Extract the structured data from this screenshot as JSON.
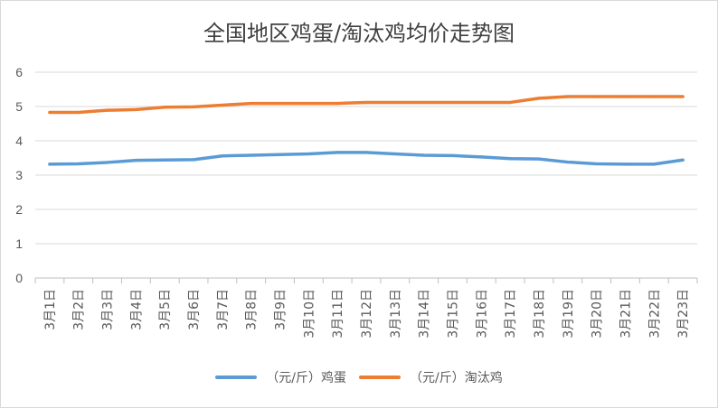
{
  "chart_data": {
    "type": "line",
    "title": "全国地区鸡蛋/淘汰鸡均价走势图",
    "categories": [
      "3月1日",
      "3月2日",
      "3月3日",
      "3月4日",
      "3月5日",
      "3月6日",
      "3月7日",
      "3月8日",
      "3月9日",
      "3月10日",
      "3月11日",
      "3月12日",
      "3月13日",
      "3月14日",
      "3月15日",
      "3月16日",
      "3月17日",
      "3月18日",
      "3月19日",
      "3月20日",
      "3月21日",
      "3月22日",
      "3月23日"
    ],
    "yticks": [
      "0",
      "1",
      "2",
      "3",
      "4",
      "5",
      "6"
    ],
    "ylim": [
      0,
      6
    ],
    "grid": true,
    "legend_position": "bottom",
    "series": [
      {
        "name": "（元/斤）鸡蛋",
        "color": "#5b9bd5",
        "values": [
          3.32,
          3.33,
          3.37,
          3.43,
          3.44,
          3.45,
          3.56,
          3.58,
          3.6,
          3.62,
          3.66,
          3.66,
          3.62,
          3.58,
          3.57,
          3.53,
          3.48,
          3.47,
          3.38,
          3.33,
          3.32,
          3.32,
          3.44
        ]
      },
      {
        "name": "（元/斤）淘汰鸡",
        "color": "#ed7d31",
        "values": [
          4.83,
          4.83,
          4.89,
          4.91,
          4.98,
          4.99,
          5.04,
          5.09,
          5.09,
          5.09,
          5.09,
          5.12,
          5.12,
          5.12,
          5.12,
          5.12,
          5.12,
          5.24,
          5.29,
          5.29,
          5.29,
          5.29,
          5.29
        ]
      }
    ]
  }
}
